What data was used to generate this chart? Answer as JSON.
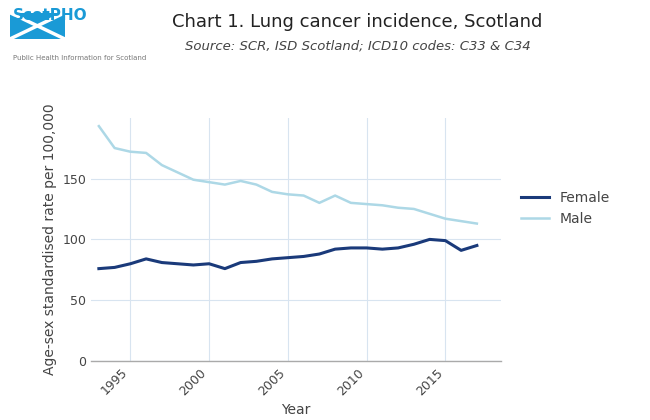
{
  "title": "Chart 1. Lung cancer incidence, Scotland",
  "subtitle": "Source: SCR, ISD Scotland; ICD10 codes: C33 & C34",
  "xlabel": "Year",
  "ylabel": "Age-sex standardised rate per 100,000",
  "ylim": [
    0,
    200
  ],
  "yticks": [
    0,
    50,
    100,
    150
  ],
  "years": [
    1993,
    1994,
    1995,
    1996,
    1997,
    1998,
    1999,
    2000,
    2001,
    2002,
    2003,
    2004,
    2005,
    2006,
    2007,
    2008,
    2009,
    2010,
    2011,
    2012,
    2013,
    2014,
    2015,
    2016,
    2017
  ],
  "female": [
    76,
    77,
    80,
    84,
    81,
    80,
    79,
    80,
    76,
    81,
    82,
    84,
    85,
    86,
    88,
    92,
    93,
    93,
    92,
    93,
    96,
    100,
    99,
    91,
    95
  ],
  "male": [
    193,
    175,
    172,
    171,
    161,
    155,
    149,
    147,
    145,
    148,
    145,
    139,
    137,
    136,
    130,
    136,
    130,
    129,
    128,
    126,
    125,
    121,
    117,
    115,
    113
  ],
  "female_color": "#1a3a7a",
  "male_color": "#add8e6",
  "female_linewidth": 2.2,
  "male_linewidth": 1.8,
  "background_color": "#ffffff",
  "grid_color": "#d8e4f0",
  "title_fontsize": 13,
  "subtitle_fontsize": 9.5,
  "axis_label_fontsize": 10,
  "tick_fontsize": 9,
  "legend_fontsize": 10,
  "xticks": [
    1995,
    2000,
    2005,
    2010,
    2015
  ],
  "scotpho_blue": "#1a9ad6",
  "text_color": "#444444"
}
